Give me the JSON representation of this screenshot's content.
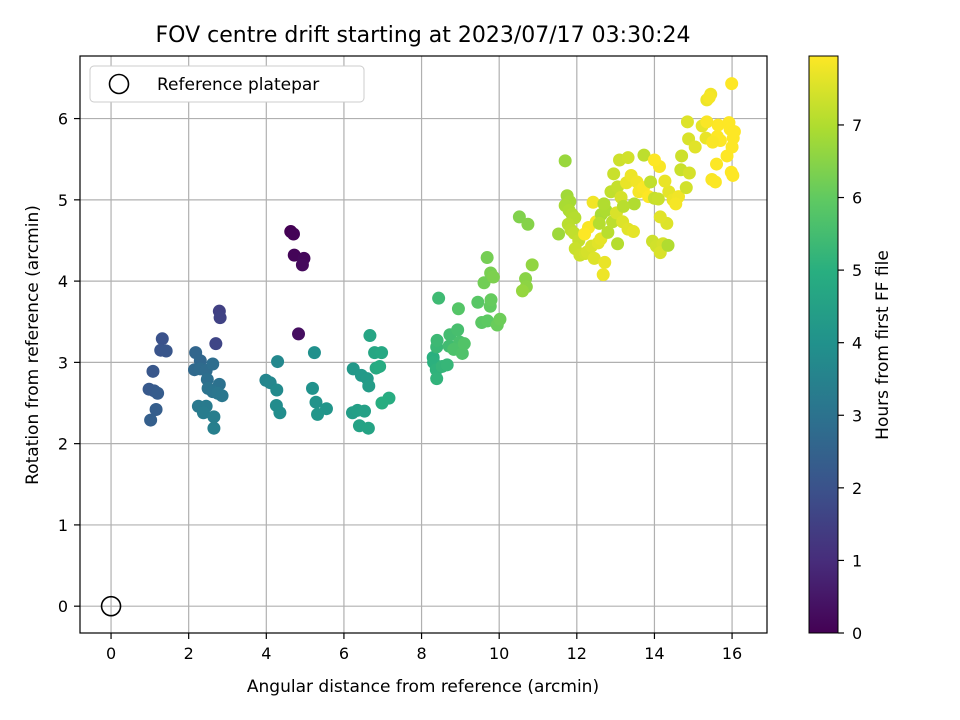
{
  "chart_data": {
    "type": "scatter",
    "title": "FOV centre drift starting at 2023/07/17 03:30:24",
    "xlabel": "Angular distance from reference (arcmin)",
    "ylabel": "Rotation from reference (arcmin)",
    "xlim": [
      -0.8,
      16.9
    ],
    "ylim": [
      -0.33,
      6.77
    ],
    "xticks": [
      0,
      2,
      4,
      6,
      8,
      10,
      12,
      14,
      16
    ],
    "yticks": [
      0,
      1,
      2,
      3,
      4,
      5,
      6
    ],
    "grid": true,
    "legend": {
      "placement": "top-left",
      "entries": [
        "Reference platepar"
      ]
    },
    "reference_point": {
      "x": 0,
      "y": 0,
      "label": "Reference platepar"
    },
    "colorbar": {
      "label": "Hours from first FF file",
      "colormap": "viridis",
      "range": [
        0,
        7.95
      ],
      "ticks": [
        0,
        1,
        2,
        3,
        4,
        5,
        6,
        7
      ]
    },
    "points": [
      [
        4.63,
        4.61,
        0.0
      ],
      [
        4.7,
        4.58,
        0.05
      ],
      [
        4.72,
        4.32,
        0.1
      ],
      [
        4.97,
        4.28,
        0.15
      ],
      [
        4.93,
        4.2,
        0.2
      ],
      [
        4.83,
        3.35,
        0.3
      ],
      [
        2.79,
        3.63,
        1.5
      ],
      [
        2.81,
        3.55,
        1.55
      ],
      [
        2.7,
        3.23,
        1.65
      ],
      [
        1.32,
        3.29,
        2.0
      ],
      [
        1.28,
        3.15,
        2.05
      ],
      [
        1.42,
        3.14,
        2.1
      ],
      [
        1.08,
        2.89,
        2.15
      ],
      [
        0.98,
        2.67,
        2.2
      ],
      [
        1.11,
        2.65,
        2.25
      ],
      [
        1.2,
        2.62,
        2.3
      ],
      [
        1.16,
        2.42,
        2.35
      ],
      [
        1.02,
        2.29,
        2.4
      ],
      [
        2.18,
        3.12,
        2.6
      ],
      [
        2.3,
        3.02,
        2.65
      ],
      [
        2.15,
        2.91,
        2.7
      ],
      [
        2.3,
        2.92,
        2.75
      ],
      [
        2.45,
        2.9,
        2.8
      ],
      [
        2.62,
        2.98,
        2.85
      ],
      [
        2.48,
        2.79,
        2.9
      ],
      [
        2.79,
        2.73,
        2.95
      ],
      [
        2.5,
        2.68,
        3.0
      ],
      [
        2.62,
        2.64,
        3.05
      ],
      [
        2.75,
        2.62,
        3.1
      ],
      [
        2.86,
        2.59,
        3.15
      ],
      [
        2.25,
        2.46,
        3.2
      ],
      [
        2.45,
        2.46,
        3.25
      ],
      [
        2.38,
        2.38,
        3.3
      ],
      [
        2.65,
        2.33,
        3.35
      ],
      [
        2.65,
        2.19,
        3.4
      ],
      [
        3.99,
        2.78,
        3.6
      ],
      [
        4.1,
        2.75,
        3.65
      ],
      [
        4.29,
        3.01,
        3.7
      ],
      [
        4.27,
        2.66,
        3.75
      ],
      [
        4.26,
        2.47,
        3.8
      ],
      [
        4.35,
        2.38,
        3.85
      ],
      [
        5.24,
        3.12,
        3.95
      ],
      [
        5.19,
        2.68,
        4.0
      ],
      [
        5.28,
        2.51,
        4.05
      ],
      [
        5.55,
        2.43,
        4.1
      ],
      [
        5.32,
        2.36,
        4.15
      ],
      [
        6.24,
        2.92,
        4.2
      ],
      [
        6.45,
        2.84,
        4.25
      ],
      [
        6.6,
        2.8,
        4.3
      ],
      [
        6.64,
        2.71,
        4.35
      ],
      [
        6.22,
        2.38,
        4.4
      ],
      [
        6.35,
        2.41,
        4.45
      ],
      [
        6.53,
        2.4,
        4.5
      ],
      [
        6.4,
        2.22,
        4.55
      ],
      [
        6.63,
        2.19,
        4.6
      ],
      [
        6.67,
        3.33,
        4.65
      ],
      [
        6.79,
        3.12,
        4.7
      ],
      [
        6.97,
        3.12,
        4.75
      ],
      [
        6.83,
        2.93,
        4.8
      ],
      [
        6.92,
        2.95,
        4.85
      ],
      [
        7.16,
        2.56,
        4.9
      ],
      [
        6.98,
        2.5,
        4.95
      ],
      [
        8.3,
        3.06,
        5.0
      ],
      [
        8.31,
        3.0,
        5.05
      ],
      [
        8.38,
        2.91,
        5.1
      ],
      [
        8.39,
        2.8,
        5.15
      ],
      [
        8.53,
        2.95,
        5.2
      ],
      [
        8.66,
        2.97,
        5.25
      ],
      [
        8.39,
        3.19,
        5.3
      ],
      [
        8.4,
        3.27,
        5.35
      ],
      [
        8.44,
        3.79,
        5.4
      ],
      [
        8.71,
        3.2,
        5.45
      ],
      [
        8.73,
        3.34,
        5.5
      ],
      [
        8.93,
        3.4,
        5.55
      ],
      [
        8.98,
        3.25,
        5.6
      ],
      [
        8.83,
        3.16,
        5.65
      ],
      [
        9.05,
        3.11,
        5.7
      ],
      [
        9.1,
        3.23,
        5.75
      ],
      [
        8.95,
        3.66,
        5.8
      ],
      [
        9.45,
        3.74,
        5.85
      ],
      [
        9.55,
        3.49,
        5.9
      ],
      [
        9.7,
        3.51,
        5.95
      ],
      [
        9.77,
        3.69,
        6.0
      ],
      [
        9.79,
        3.77,
        6.05
      ],
      [
        9.95,
        3.46,
        6.1
      ],
      [
        10.02,
        3.53,
        6.15
      ],
      [
        9.61,
        3.98,
        6.2
      ],
      [
        9.69,
        4.29,
        6.25
      ],
      [
        9.78,
        4.1,
        6.3
      ],
      [
        9.85,
        4.05,
        6.35
      ],
      [
        10.52,
        4.79,
        6.4
      ],
      [
        10.74,
        4.7,
        6.45
      ],
      [
        10.68,
        4.03,
        6.5
      ],
      [
        10.7,
        3.93,
        6.55
      ],
      [
        10.85,
        4.2,
        6.6
      ],
      [
        10.6,
        3.88,
        6.65
      ],
      [
        11.7,
        5.48,
        6.7
      ],
      [
        11.53,
        4.58,
        6.75
      ],
      [
        11.75,
        5.05,
        6.8
      ],
      [
        11.82,
        4.98,
        6.85
      ],
      [
        11.7,
        4.93,
        6.9
      ],
      [
        11.8,
        4.87,
        6.95
      ],
      [
        11.88,
        4.82,
        7.0
      ],
      [
        11.95,
        4.78,
        7.05
      ],
      [
        11.78,
        4.7,
        7.1
      ],
      [
        11.85,
        4.63,
        7.15
      ],
      [
        11.93,
        4.59,
        7.2
      ],
      [
        12.05,
        4.5,
        7.25
      ],
      [
        11.96,
        4.4,
        7.3
      ],
      [
        12.08,
        4.32,
        7.35
      ],
      [
        12.22,
        4.34,
        7.4
      ],
      [
        12.27,
        4.36,
        7.45
      ],
      [
        12.38,
        4.43,
        7.5
      ],
      [
        12.45,
        4.28,
        7.55
      ],
      [
        12.55,
        4.47,
        7.6
      ],
      [
        12.62,
        4.52,
        7.65
      ],
      [
        12.72,
        4.23,
        7.7
      ],
      [
        12.68,
        4.08,
        7.75
      ],
      [
        12.42,
        4.97,
        7.8
      ],
      [
        12.5,
        4.73,
        7.85
      ],
      [
        12.3,
        4.66,
        7.9
      ],
      [
        12.2,
        4.58,
        7.95
      ],
      [
        12.63,
        4.82,
        6.9
      ],
      [
        12.75,
        4.87,
        6.95
      ],
      [
        12.7,
        4.95,
        7.0
      ],
      [
        12.58,
        4.71,
        7.05
      ],
      [
        12.8,
        4.6,
        7.1
      ],
      [
        12.92,
        4.73,
        7.15
      ],
      [
        12.88,
        5.1,
        7.2
      ],
      [
        13.05,
        5.16,
        7.25
      ],
      [
        12.95,
        5.32,
        7.3
      ],
      [
        13.1,
        5.49,
        7.35
      ],
      [
        13.32,
        5.52,
        7.4
      ],
      [
        13.14,
        5.03,
        7.45
      ],
      [
        13.02,
        4.84,
        7.5
      ],
      [
        13.18,
        4.73,
        7.55
      ],
      [
        13.32,
        4.64,
        7.6
      ],
      [
        13.46,
        4.61,
        7.65
      ],
      [
        13.28,
        5.21,
        7.7
      ],
      [
        13.4,
        5.3,
        7.75
      ],
      [
        13.55,
        5.22,
        7.8
      ],
      [
        13.6,
        5.1,
        7.85
      ],
      [
        13.72,
        5.15,
        7.9
      ],
      [
        13.85,
        5.04,
        7.95
      ],
      [
        13.48,
        4.95,
        7.0
      ],
      [
        13.05,
        4.46,
        7.05
      ],
      [
        13.2,
        4.92,
        7.1
      ],
      [
        13.73,
        5.55,
        7.15
      ],
      [
        13.9,
        5.22,
        7.2
      ],
      [
        14.0,
        5.02,
        7.25
      ],
      [
        14.1,
        5.01,
        7.3
      ],
      [
        13.95,
        4.49,
        7.35
      ],
      [
        14.05,
        4.43,
        7.4
      ],
      [
        14.22,
        4.46,
        7.45
      ],
      [
        14.15,
        4.35,
        7.5
      ],
      [
        14.32,
        4.71,
        7.55
      ],
      [
        14.15,
        4.79,
        7.6
      ],
      [
        14.37,
        5.1,
        7.65
      ],
      [
        14.27,
        5.23,
        7.7
      ],
      [
        14.48,
        5.0,
        7.75
      ],
      [
        14.62,
        5.04,
        7.8
      ],
      [
        14.55,
        4.95,
        7.85
      ],
      [
        14.13,
        5.41,
        7.9
      ],
      [
        14.0,
        5.49,
        7.95
      ],
      [
        14.35,
        4.44,
        7.0
      ],
      [
        14.68,
        5.37,
        7.3
      ],
      [
        14.7,
        5.54,
        7.35
      ],
      [
        14.82,
        5.15,
        7.4
      ],
      [
        14.9,
        5.33,
        7.45
      ],
      [
        14.88,
        5.75,
        7.5
      ],
      [
        14.85,
        5.96,
        7.55
      ],
      [
        15.05,
        5.65,
        7.6
      ],
      [
        15.23,
        5.91,
        7.65
      ],
      [
        15.33,
        5.76,
        7.7
      ],
      [
        15.35,
        6.23,
        7.75
      ],
      [
        15.45,
        6.3,
        7.8
      ],
      [
        15.41,
        6.26,
        7.85
      ],
      [
        15.48,
        5.25,
        7.9
      ],
      [
        15.57,
        5.22,
        7.92
      ],
      [
        15.6,
        5.44,
        7.94
      ],
      [
        15.62,
        5.78,
        7.95
      ],
      [
        15.64,
        5.92,
        7.95
      ],
      [
        15.7,
        5.73,
        7.95
      ],
      [
        15.87,
        5.54,
        7.95
      ],
      [
        15.92,
        5.95,
        7.95
      ],
      [
        15.95,
        5.87,
        7.95
      ],
      [
        16.0,
        5.65,
        7.95
      ],
      [
        16.03,
        5.76,
        7.95
      ],
      [
        16.06,
        5.84,
        7.95
      ],
      [
        15.98,
        5.34,
        7.95
      ],
      [
        16.02,
        5.3,
        7.95
      ],
      [
        15.99,
        6.43,
        7.95
      ],
      [
        15.35,
        5.96,
        7.9
      ],
      [
        15.5,
        5.71,
        7.9
      ]
    ]
  }
}
